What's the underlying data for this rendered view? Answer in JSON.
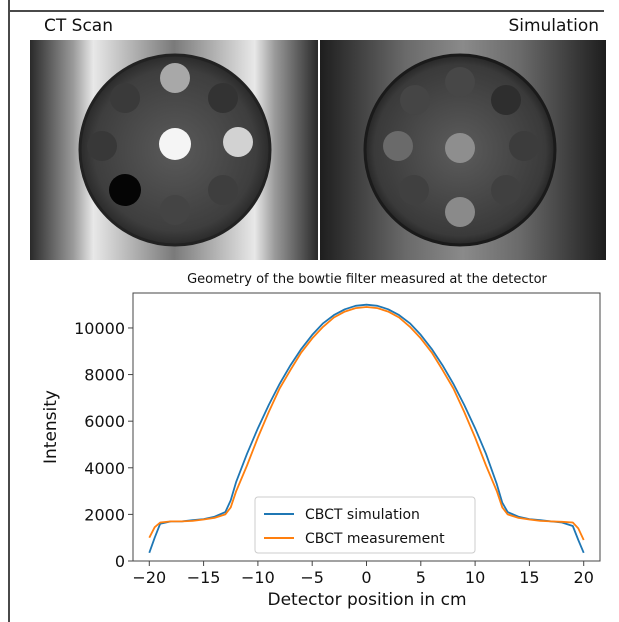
{
  "panels": {
    "ct_label": "CT Scan",
    "sim_label": "Simulation"
  },
  "chart_data": {
    "type": "line",
    "title": "Geometry of the bowtie filter measured at the detector",
    "xlabel": "Detector position in cm",
    "ylabel": "Intensity",
    "xlim": [
      -21.5,
      21.5
    ],
    "ylim": [
      0,
      11500
    ],
    "xticks": [
      -20,
      -15,
      -10,
      -5,
      0,
      5,
      10,
      15,
      20
    ],
    "yticks": [
      0,
      2000,
      4000,
      6000,
      8000,
      10000
    ],
    "legend_position": "lower-center",
    "grid": false,
    "series": [
      {
        "name": "CBCT simulation",
        "color": "#1f77b4",
        "x": [
          -20,
          -19.5,
          -19,
          -18,
          -17,
          -16,
          -15,
          -14,
          -13,
          -12.5,
          -12,
          -11,
          -10,
          -9,
          -8,
          -7,
          -6,
          -5,
          -4,
          -3,
          -2,
          -1,
          0,
          1,
          2,
          3,
          4,
          5,
          6,
          7,
          8,
          9,
          10,
          11,
          12,
          12.5,
          13,
          14,
          15,
          16,
          17,
          18,
          19,
          19.5,
          20
        ],
        "y": [
          350,
          1000,
          1600,
          1700,
          1700,
          1750,
          1800,
          1900,
          2100,
          2600,
          3400,
          4600,
          5700,
          6700,
          7600,
          8400,
          9100,
          9700,
          10200,
          10550,
          10800,
          10950,
          11000,
          10950,
          10800,
          10550,
          10200,
          9700,
          9100,
          8400,
          7600,
          6700,
          5700,
          4600,
          3300,
          2500,
          2100,
          1900,
          1800,
          1750,
          1700,
          1650,
          1500,
          900,
          350
        ]
      },
      {
        "name": "CBCT measurement",
        "color": "#ff7f0e",
        "x": [
          -20,
          -19.5,
          -19,
          -18,
          -17,
          -16,
          -15,
          -14,
          -13,
          -12.5,
          -12,
          -11,
          -10,
          -9,
          -8,
          -7,
          -6,
          -5,
          -4,
          -3,
          -2,
          -1,
          0,
          1,
          2,
          3,
          4,
          5,
          6,
          7,
          8,
          9,
          10,
          11,
          12,
          12.5,
          13,
          14,
          15,
          16,
          17,
          18,
          19,
          19.5,
          20
        ],
        "y": [
          1000,
          1450,
          1650,
          1700,
          1700,
          1720,
          1780,
          1850,
          2000,
          2300,
          3000,
          4100,
          5300,
          6400,
          7400,
          8200,
          8950,
          9550,
          10050,
          10450,
          10700,
          10850,
          10900,
          10850,
          10700,
          10450,
          10050,
          9550,
          8950,
          8200,
          7400,
          6400,
          5300,
          4100,
          3000,
          2300,
          2000,
          1850,
          1780,
          1720,
          1700,
          1680,
          1650,
          1400,
          900
        ]
      }
    ]
  }
}
